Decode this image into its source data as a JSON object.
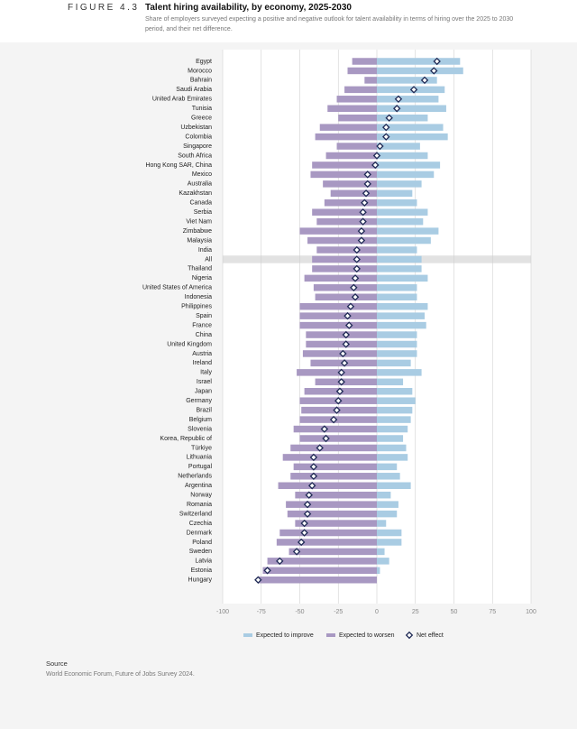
{
  "chart_data": {
    "type": "diverging-bar",
    "figure_label": "FIGURE 4.3",
    "title": "Talent hiring availability, by economy, 2025-2030",
    "subtitle": "Share of employers surveyed expecting a positive and negative outlook for talent availability in terms of hiring over the 2025 to 2030 period, and their net difference.",
    "categories": [
      "Egypt",
      "Morocco",
      "Bahrain",
      "Saudi Arabia",
      "United Arab Emirates",
      "Tunisia",
      "Greece",
      "Uzbekistan",
      "Colombia",
      "Singapore",
      "South Africa",
      "Hong Kong SAR, China",
      "Mexico",
      "Australia",
      "Kazakhstan",
      "Canada",
      "Serbia",
      "Viet Nam",
      "Zimbabwe",
      "Malaysia",
      "India",
      "All",
      "Thailand",
      "Nigeria",
      "United States of America",
      "Indonesia",
      "Philippines",
      "Spain",
      "France",
      "China",
      "United Kingdom",
      "Austria",
      "Ireland",
      "Italy",
      "Israel",
      "Japan",
      "Germany",
      "Brazil",
      "Belgium",
      "Slovenia",
      "Korea, Republic of",
      "Türkiye",
      "Lithuania",
      "Portugal",
      "Netherlands",
      "Argentina",
      "Norway",
      "Romania",
      "Switzerland",
      "Czechia",
      "Denmark",
      "Poland",
      "Sweden",
      "Latvia",
      "Estonia",
      "Hungary"
    ],
    "highlight_index": 21,
    "series": [
      {
        "name": "Expected to improve",
        "color": "#a9cce3",
        "values": [
          54,
          56,
          39,
          44,
          40,
          45,
          33,
          43,
          46,
          28,
          33,
          41,
          37,
          29,
          23,
          26,
          33,
          30,
          40,
          35,
          26,
          29,
          29,
          33,
          26,
          26,
          33,
          31,
          32,
          26,
          26,
          26,
          22,
          29,
          17,
          23,
          25,
          23,
          22,
          20,
          17,
          19,
          20,
          13,
          15,
          22,
          9,
          14,
          13,
          6,
          16,
          16,
          5,
          8,
          2,
          0
        ]
      },
      {
        "name": "Expected to worsen",
        "color": "#a898c2",
        "values": [
          -16,
          -19,
          -8,
          -21,
          -26,
          -32,
          -25,
          -37,
          -40,
          -26,
          -33,
          -42,
          -43,
          -35,
          -30,
          -34,
          -42,
          -39,
          -50,
          -45,
          -39,
          -42,
          -42,
          -47,
          -41,
          -40,
          -50,
          -50,
          -50,
          -46,
          -46,
          -48,
          -43,
          -52,
          -40,
          -47,
          -50,
          -49,
          -50,
          -54,
          -50,
          -56,
          -61,
          -54,
          -56,
          -64,
          -53,
          -59,
          -58,
          -53,
          -63,
          -65,
          -57,
          -71,
          -74,
          -77
        ]
      },
      {
        "name": "Net effect",
        "color": "#1f2a55",
        "marker": "diamond",
        "values": [
          39,
          37,
          31,
          24,
          14,
          13,
          8,
          6,
          6,
          2,
          0,
          -1,
          -6,
          -6,
          -7,
          -8,
          -9,
          -9,
          -10,
          -10,
          -13,
          -13,
          -13,
          -14,
          -15,
          -14,
          -17,
          -19,
          -18,
          -20,
          -20,
          -22,
          -21,
          -23,
          -23,
          -24,
          -25,
          -26,
          -28,
          -34,
          -33,
          -37,
          -41,
          -41,
          -41,
          -42,
          -44,
          -45,
          -45,
          -47,
          -47,
          -49,
          -52,
          -63,
          -71,
          -77
        ]
      }
    ],
    "xlim": [
      -100,
      100
    ],
    "xticks": [
      -100,
      -75,
      -50,
      -25,
      0,
      25,
      50,
      75,
      100
    ],
    "grid": true,
    "legend": "bottom",
    "source_label": "Source",
    "source": "World Economic Forum, Future of Jobs Survey 2024."
  }
}
